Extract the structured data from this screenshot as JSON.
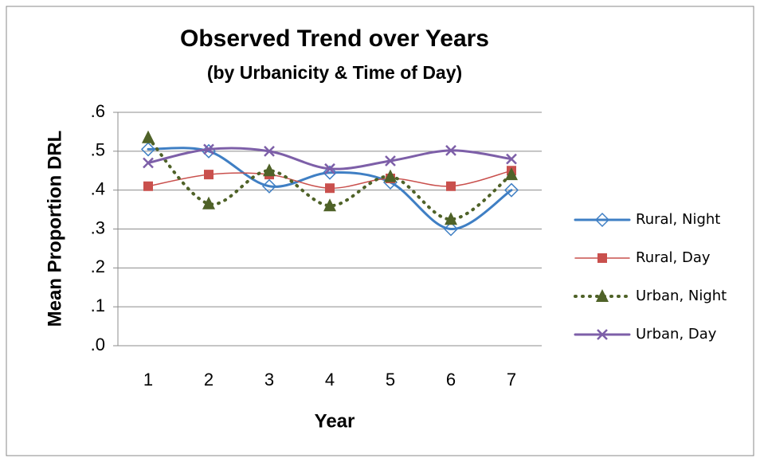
{
  "chart_data": {
    "type": "line",
    "title": "Observed Trend over Years",
    "subtitle": "(by Urbanicity & Time of Day)",
    "x_label": "Year",
    "y_label": "Mean Proportion DRL",
    "categories": [
      "1",
      "2",
      "3",
      "4",
      "5",
      "6",
      "7"
    ],
    "series": [
      {
        "name": "Rural, Night",
        "color": "#3f7fc4",
        "values": [
          0.505,
          0.5,
          0.41,
          0.445,
          0.42,
          0.3,
          0.4
        ]
      },
      {
        "name": "Rural, Day",
        "color": "#c9504d",
        "values": [
          0.41,
          0.44,
          0.44,
          0.405,
          0.43,
          0.41,
          0.45
        ]
      },
      {
        "name": "Urban, Night",
        "color": "#4f6228",
        "values": [
          0.535,
          0.365,
          0.45,
          0.36,
          0.435,
          0.325,
          0.44
        ]
      },
      {
        "name": "Urban, Day",
        "color": "#7d5fa8",
        "values": [
          0.47,
          0.505,
          0.5,
          0.455,
          0.475,
          0.502,
          0.48
        ]
      }
    ],
    "ylim": [
      0,
      0.6
    ],
    "yticks": [
      {
        "value": 0,
        "label": ".0"
      },
      {
        "value": 0.1,
        "label": ".1"
      },
      {
        "value": 0.2,
        "label": ".2"
      },
      {
        "value": 0.3,
        "label": ".3"
      },
      {
        "value": 0.4,
        "label": ".4"
      },
      {
        "value": 0.5,
        "label": ".5"
      },
      {
        "value": 0.6,
        "label": ".6"
      }
    ],
    "grid": true,
    "legend": "right"
  }
}
